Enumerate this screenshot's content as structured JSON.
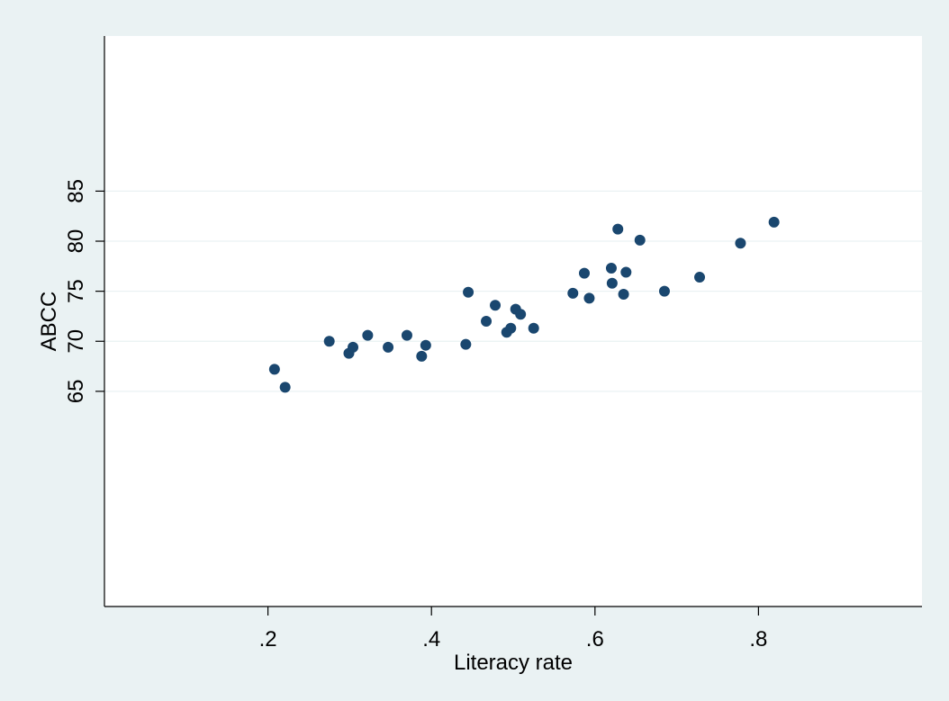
{
  "chart_data": {
    "type": "scatter",
    "xlabel": "Literacy rate",
    "ylabel": "ABCC",
    "xlim": [
      0.0,
      1.0
    ],
    "ylim": [
      43.5,
      100.5
    ],
    "x_ticks": [
      0.2,
      0.4,
      0.6,
      0.8
    ],
    "x_tick_labels": [
      ".2",
      ".4",
      ".6",
      ".8"
    ],
    "y_ticks": [
      65,
      70,
      75,
      80,
      85
    ],
    "y_tick_labels": [
      "65",
      "70",
      "75",
      "80",
      "85"
    ],
    "grid": "horizontal",
    "legend": "none",
    "colors": {
      "background": "#eaf2f3",
      "plot_area": "#ffffff",
      "gridline": "#eaf2f3",
      "marker": "#1a476f",
      "axis": "#000000"
    },
    "points": [
      {
        "x": 0.208,
        "y": 67.2
      },
      {
        "x": 0.221,
        "y": 65.4
      },
      {
        "x": 0.275,
        "y": 70.0
      },
      {
        "x": 0.299,
        "y": 68.8
      },
      {
        "x": 0.304,
        "y": 69.4
      },
      {
        "x": 0.322,
        "y": 70.6
      },
      {
        "x": 0.347,
        "y": 69.4
      },
      {
        "x": 0.37,
        "y": 70.6
      },
      {
        "x": 0.388,
        "y": 68.5
      },
      {
        "x": 0.393,
        "y": 69.6
      },
      {
        "x": 0.442,
        "y": 69.7
      },
      {
        "x": 0.445,
        "y": 74.9
      },
      {
        "x": 0.467,
        "y": 72.0
      },
      {
        "x": 0.478,
        "y": 73.6
      },
      {
        "x": 0.492,
        "y": 70.9
      },
      {
        "x": 0.497,
        "y": 71.3
      },
      {
        "x": 0.503,
        "y": 73.2
      },
      {
        "x": 0.509,
        "y": 72.7
      },
      {
        "x": 0.525,
        "y": 71.3
      },
      {
        "x": 0.573,
        "y": 74.8
      },
      {
        "x": 0.587,
        "y": 76.8
      },
      {
        "x": 0.593,
        "y": 74.3
      },
      {
        "x": 0.62,
        "y": 77.3
      },
      {
        "x": 0.621,
        "y": 75.8
      },
      {
        "x": 0.628,
        "y": 81.2
      },
      {
        "x": 0.635,
        "y": 74.7
      },
      {
        "x": 0.638,
        "y": 76.9
      },
      {
        "x": 0.655,
        "y": 80.1
      },
      {
        "x": 0.685,
        "y": 75.0
      },
      {
        "x": 0.728,
        "y": 76.4
      },
      {
        "x": 0.778,
        "y": 79.8
      },
      {
        "x": 0.819,
        "y": 81.9
      }
    ]
  }
}
